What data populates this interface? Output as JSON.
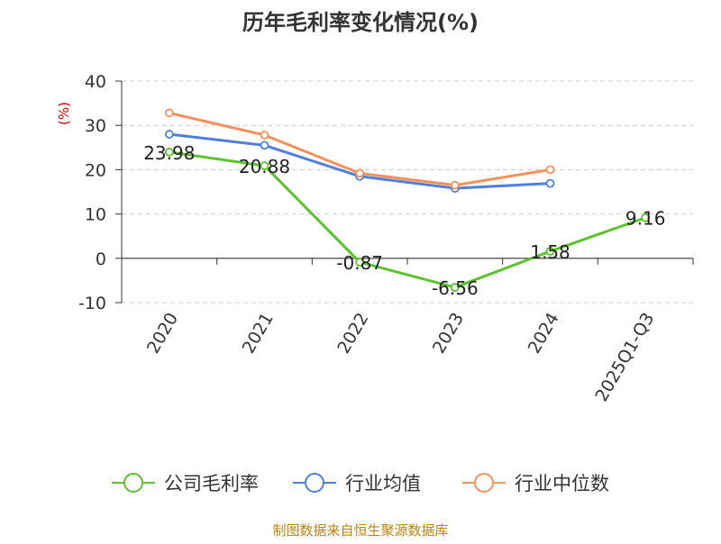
{
  "chart_data": {
    "type": "line",
    "title": "历年毛利率变化情况(%)",
    "ylabel": "(%)",
    "ylim": [
      -10,
      40
    ],
    "yticks": [
      -10,
      0,
      10,
      20,
      30,
      40
    ],
    "grid": true,
    "legend_position": "bottom",
    "categories": [
      "2020",
      "2021",
      "2022",
      "2023",
      "2024",
      "2025Q1-Q3"
    ],
    "series": [
      {
        "name": "公司毛利率",
        "color": "#5cc42b",
        "values": [
          23.98,
          20.88,
          -0.87,
          -6.56,
          1.58,
          9.16
        ],
        "labels": [
          "23.98",
          "20.88",
          "-0.87",
          "-6.56",
          "1.58",
          "9.16"
        ]
      },
      {
        "name": "行业均值",
        "color": "#4e80db",
        "values": [
          28.0,
          25.5,
          18.5,
          15.8,
          16.9,
          null
        ]
      },
      {
        "name": "行业中位数",
        "color": "#f7905a",
        "values": [
          32.8,
          27.8,
          19.2,
          16.5,
          20.0,
          null
        ]
      }
    ]
  },
  "footer": {
    "source": "制图数据来自恒生聚源数据库"
  },
  "colors": {
    "title": "#333333",
    "axis_label": "#cc0000",
    "source": "#b8860b",
    "grid": "#cccccc"
  }
}
